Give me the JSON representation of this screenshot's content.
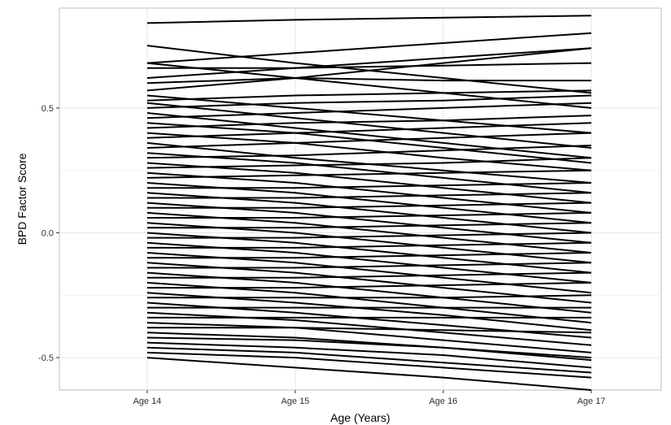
{
  "chart_data": {
    "type": "line",
    "title": "",
    "xlabel": "Age (Years)",
    "ylabel": "BPD Factor Score",
    "categories": [
      "Age 14",
      "Age 15",
      "Age 16",
      "Age 17"
    ],
    "ylim": [
      -0.63,
      0.9
    ],
    "yticks": [
      -0.5,
      0.0,
      0.5
    ],
    "ytick_labels": [
      "-0.5",
      "0.0",
      "0.5"
    ],
    "grid": true,
    "legend": "none",
    "line_color": "#000000",
    "series": [
      {
        "values": [
          0.84,
          0.853,
          0.862,
          0.87
        ]
      },
      {
        "values": [
          0.75,
          0.68,
          0.62,
          0.56
        ]
      },
      {
        "values": [
          0.68,
          0.72,
          0.76,
          0.8
        ]
      },
      {
        "values": [
          0.68,
          0.62,
          0.56,
          0.5
        ]
      },
      {
        "values": [
          0.66,
          0.66,
          0.67,
          0.68
        ]
      },
      {
        "values": [
          0.62,
          0.66,
          0.7,
          0.74
        ]
      },
      {
        "values": [
          0.6,
          0.62,
          0.61,
          0.61
        ]
      },
      {
        "values": [
          0.57,
          0.62,
          0.68,
          0.74
        ]
      },
      {
        "values": [
          0.55,
          0.5,
          0.45,
          0.4
        ]
      },
      {
        "values": [
          0.53,
          0.55,
          0.56,
          0.57
        ]
      },
      {
        "values": [
          0.52,
          0.46,
          0.4,
          0.34
        ]
      },
      {
        "values": [
          0.5,
          0.52,
          0.53,
          0.55
        ]
      },
      {
        "values": [
          0.48,
          0.42,
          0.36,
          0.3
        ]
      },
      {
        "values": [
          0.46,
          0.48,
          0.5,
          0.52
        ]
      },
      {
        "values": [
          0.44,
          0.4,
          0.34,
          0.28
        ]
      },
      {
        "values": [
          0.42,
          0.44,
          0.45,
          0.47
        ]
      },
      {
        "values": [
          0.4,
          0.36,
          0.3,
          0.25
        ]
      },
      {
        "values": [
          0.38,
          0.4,
          0.42,
          0.44
        ]
      },
      {
        "values": [
          0.36,
          0.3,
          0.25,
          0.2
        ]
      },
      {
        "values": [
          0.34,
          0.36,
          0.38,
          0.4
        ]
      },
      {
        "values": [
          0.32,
          0.28,
          0.22,
          0.16
        ]
      },
      {
        "values": [
          0.3,
          0.31,
          0.33,
          0.35
        ]
      },
      {
        "values": [
          0.28,
          0.24,
          0.18,
          0.12
        ]
      },
      {
        "values": [
          0.26,
          0.27,
          0.28,
          0.3
        ]
      },
      {
        "values": [
          0.24,
          0.2,
          0.14,
          0.08
        ]
      },
      {
        "values": [
          0.22,
          0.23,
          0.24,
          0.25
        ]
      },
      {
        "values": [
          0.2,
          0.16,
          0.1,
          0.04
        ]
      },
      {
        "values": [
          0.18,
          0.18,
          0.19,
          0.2
        ]
      },
      {
        "values": [
          0.16,
          0.12,
          0.06,
          0.0
        ]
      },
      {
        "values": [
          0.14,
          0.14,
          0.15,
          0.16
        ]
      },
      {
        "values": [
          0.12,
          0.08,
          0.02,
          -0.04
        ]
      },
      {
        "values": [
          0.1,
          0.1,
          0.11,
          0.12
        ]
      },
      {
        "values": [
          0.08,
          0.04,
          -0.02,
          -0.08
        ]
      },
      {
        "values": [
          0.06,
          0.06,
          0.07,
          0.08
        ]
      },
      {
        "values": [
          0.04,
          0.0,
          -0.06,
          -0.12
        ]
      },
      {
        "values": [
          0.02,
          0.02,
          0.03,
          0.04
        ]
      },
      {
        "values": [
          0.0,
          -0.04,
          -0.1,
          -0.16
        ]
      },
      {
        "values": [
          -0.02,
          -0.02,
          -0.01,
          0.0
        ]
      },
      {
        "values": [
          -0.04,
          -0.08,
          -0.14,
          -0.2
        ]
      },
      {
        "values": [
          -0.06,
          -0.06,
          -0.05,
          -0.04
        ]
      },
      {
        "values": [
          -0.08,
          -0.12,
          -0.18,
          -0.24
        ]
      },
      {
        "values": [
          -0.1,
          -0.1,
          -0.09,
          -0.08
        ]
      },
      {
        "values": [
          -0.12,
          -0.16,
          -0.22,
          -0.28
        ]
      },
      {
        "values": [
          -0.14,
          -0.14,
          -0.13,
          -0.12
        ]
      },
      {
        "values": [
          -0.16,
          -0.2,
          -0.26,
          -0.32
        ]
      },
      {
        "values": [
          -0.18,
          -0.18,
          -0.17,
          -0.16
        ]
      },
      {
        "values": [
          -0.2,
          -0.24,
          -0.3,
          -0.36
        ]
      },
      {
        "values": [
          -0.22,
          -0.22,
          -0.21,
          -0.2
        ]
      },
      {
        "values": [
          -0.24,
          -0.28,
          -0.33,
          -0.39
        ]
      },
      {
        "values": [
          -0.26,
          -0.26,
          -0.26,
          -0.25
        ]
      },
      {
        "values": [
          -0.28,
          -0.32,
          -0.37,
          -0.42
        ]
      },
      {
        "values": [
          -0.3,
          -0.3,
          -0.3,
          -0.3
        ]
      },
      {
        "values": [
          -0.32,
          -0.35,
          -0.4,
          -0.45
        ]
      },
      {
        "values": [
          -0.34,
          -0.34,
          -0.34,
          -0.34
        ]
      },
      {
        "values": [
          -0.36,
          -0.38,
          -0.43,
          -0.48
        ]
      },
      {
        "values": [
          -0.38,
          -0.38,
          -0.39,
          -0.4
        ]
      },
      {
        "values": [
          -0.4,
          -0.42,
          -0.46,
          -0.51
        ]
      },
      {
        "values": [
          -0.42,
          -0.43,
          -0.46,
          -0.5
        ]
      },
      {
        "values": [
          -0.44,
          -0.46,
          -0.49,
          -0.54
        ]
      },
      {
        "values": [
          -0.46,
          -0.48,
          -0.52,
          -0.56
        ]
      },
      {
        "values": [
          -0.48,
          -0.5,
          -0.54,
          -0.58
        ]
      },
      {
        "values": [
          -0.5,
          -0.54,
          -0.58,
          -0.63
        ]
      }
    ]
  }
}
